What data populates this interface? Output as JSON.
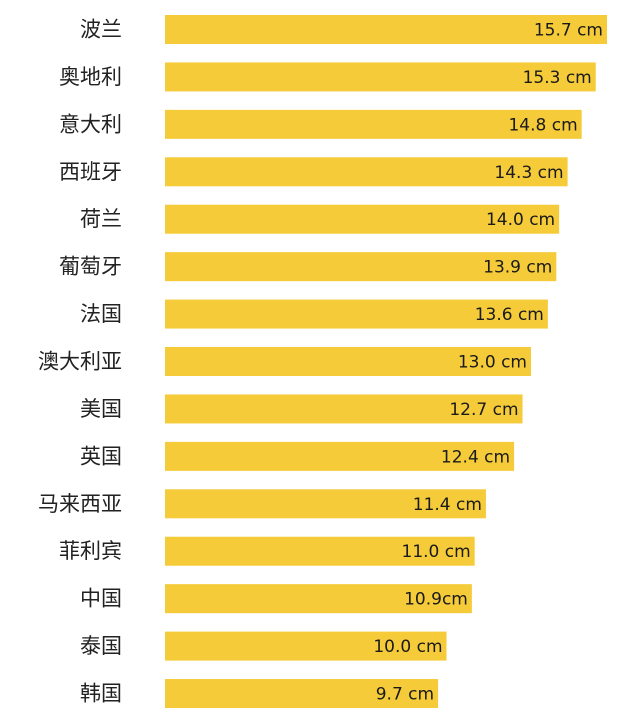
{
  "chart_data": {
    "type": "bar",
    "orientation": "horizontal",
    "categories": [
      "波兰",
      "奥地利",
      "意大利",
      "西班牙",
      "荷兰",
      "葡萄牙",
      "法国",
      "澳大利亚",
      "美国",
      "英国",
      "马来西亚",
      "菲利宾",
      "中国",
      "泰国",
      "韩国"
    ],
    "values": [
      15.7,
      15.3,
      14.8,
      14.3,
      14.0,
      13.9,
      13.6,
      13.0,
      12.7,
      12.4,
      11.4,
      11.0,
      10.9,
      10.0,
      9.7
    ],
    "value_labels": [
      "15.7 cm",
      "15.3 cm",
      "14.8 cm",
      "14.3 cm",
      "14.0 cm",
      "13.9 cm",
      "13.6 cm",
      "13.0 cm",
      "12.7 cm",
      "12.4 cm",
      "11.4 cm",
      "11.0 cm",
      "10.9cm",
      "10.0 cm",
      "9.7 cm"
    ],
    "bar_color": "#F5CB3A",
    "grid": false,
    "legend": "none"
  }
}
